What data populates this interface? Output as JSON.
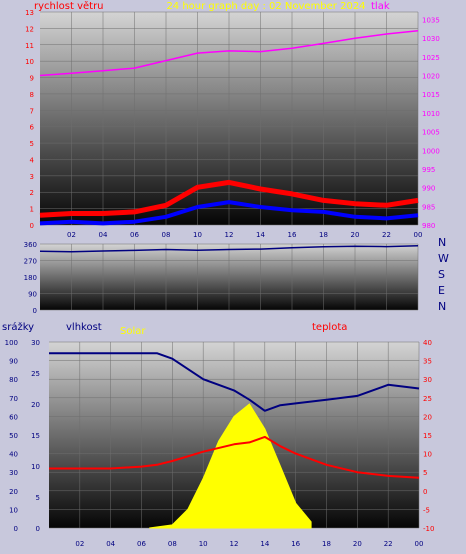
{
  "colors": {
    "background": "#c8c8dc",
    "wind_speed": "#ff0000",
    "wind_gust": "#0000ff",
    "pressure": "#ff00ff",
    "direction": "#000080",
    "humidity": "#000080",
    "temperature": "#ff0000",
    "solar": "#ffff00",
    "title": "#ffff00"
  },
  "chart_data": [
    {
      "type": "line",
      "title": "24 hour graph day : 02 November 2024",
      "y_left_label": "rychlost větru",
      "y_right_label": "tlak",
      "x_ticks": [
        "02",
        "04",
        "06",
        "08",
        "10",
        "12",
        "14",
        "16",
        "18",
        "20",
        "22",
        "00"
      ],
      "y_left_ticks": [
        0,
        1,
        2,
        3,
        4,
        5,
        6,
        7,
        8,
        9,
        10,
        11,
        12,
        13
      ],
      "y_right_ticks": [
        980,
        985,
        990,
        995,
        1000,
        1005,
        1010,
        1015,
        1020,
        1025,
        1030,
        1035
      ],
      "ylim_left": [
        0,
        13
      ],
      "ylim_right": [
        980,
        1037
      ],
      "x": [
        0,
        2,
        4,
        6,
        8,
        10,
        12,
        14,
        16,
        18,
        20,
        22,
        24
      ],
      "series": [
        {
          "values": [
            1020,
            1020.6,
            1021.3,
            1022,
            1024,
            1026,
            1026.6,
            1026.4,
            1027.3,
            1028.6,
            1030,
            1031.1,
            1032
          ],
          "axis": "right"
        },
        {
          "values": [
            0.6,
            0.7,
            0.7,
            0.8,
            1.2,
            2.3,
            2.6,
            2.2,
            1.9,
            1.5,
            1.3,
            1.2,
            1.5
          ],
          "axis": "left"
        },
        {
          "values": [
            0.1,
            0.2,
            0.1,
            0.2,
            0.5,
            1.1,
            1.4,
            1.1,
            0.9,
            0.8,
            0.5,
            0.4,
            0.6
          ],
          "axis": "left"
        }
      ]
    },
    {
      "type": "line",
      "y_ticks": [
        0,
        90,
        180,
        270,
        360
      ],
      "ylim": [
        0,
        360
      ],
      "right_labels": [
        "N",
        "W",
        "S",
        "E",
        "N"
      ],
      "x": [
        0,
        2,
        4,
        6,
        8,
        10,
        12,
        14,
        16,
        18,
        20,
        22,
        24
      ],
      "series": [
        {
          "values": [
            320,
            318,
            322,
            325,
            330,
            326,
            330,
            332,
            340,
            345,
            348,
            346,
            350
          ]
        }
      ]
    },
    {
      "type": "line",
      "labels": {
        "rain": "srážky",
        "humidity": "vlhkost",
        "solar": "Solar",
        "temperature": "teplota"
      },
      "x_ticks": [
        "02",
        "04",
        "06",
        "08",
        "10",
        "12",
        "14",
        "16",
        "18",
        "20",
        "22",
        "00"
      ],
      "rain_ticks": [
        0,
        10,
        20,
        30,
        40,
        50,
        60,
        70,
        80,
        90,
        100
      ],
      "hum_ticks": [
        0,
        5,
        10,
        15,
        20,
        25,
        30
      ],
      "temp_ticks": [
        -10,
        -5,
        0,
        5,
        10,
        15,
        20,
        25,
        30,
        35,
        40
      ],
      "ylim_rain": [
        0,
        100
      ],
      "ylim_hum": [
        0,
        30
      ],
      "ylim_temp": [
        -10,
        40
      ],
      "x": [
        0,
        2,
        4,
        6,
        7,
        8,
        10,
        12,
        13,
        14,
        15,
        16,
        18,
        20,
        22,
        24
      ],
      "series": [
        {
          "values": [
            94,
            94,
            94,
            94,
            94,
            91,
            80,
            74,
            69,
            63,
            66,
            67,
            69,
            71,
            77,
            75
          ]
        },
        {
          "values": [
            6,
            6,
            6,
            6.5,
            7,
            8,
            10.5,
            12.5,
            13,
            14.5,
            12,
            10,
            7,
            5,
            4,
            3.5
          ]
        }
      ],
      "solar": {
        "x": [
          6.5,
          8,
          9,
          10,
          11,
          12,
          13,
          14,
          15,
          16,
          17
        ],
        "values": [
          0,
          0.5,
          3,
          8,
          14,
          18,
          20,
          16,
          10,
          4,
          1
        ]
      }
    }
  ]
}
